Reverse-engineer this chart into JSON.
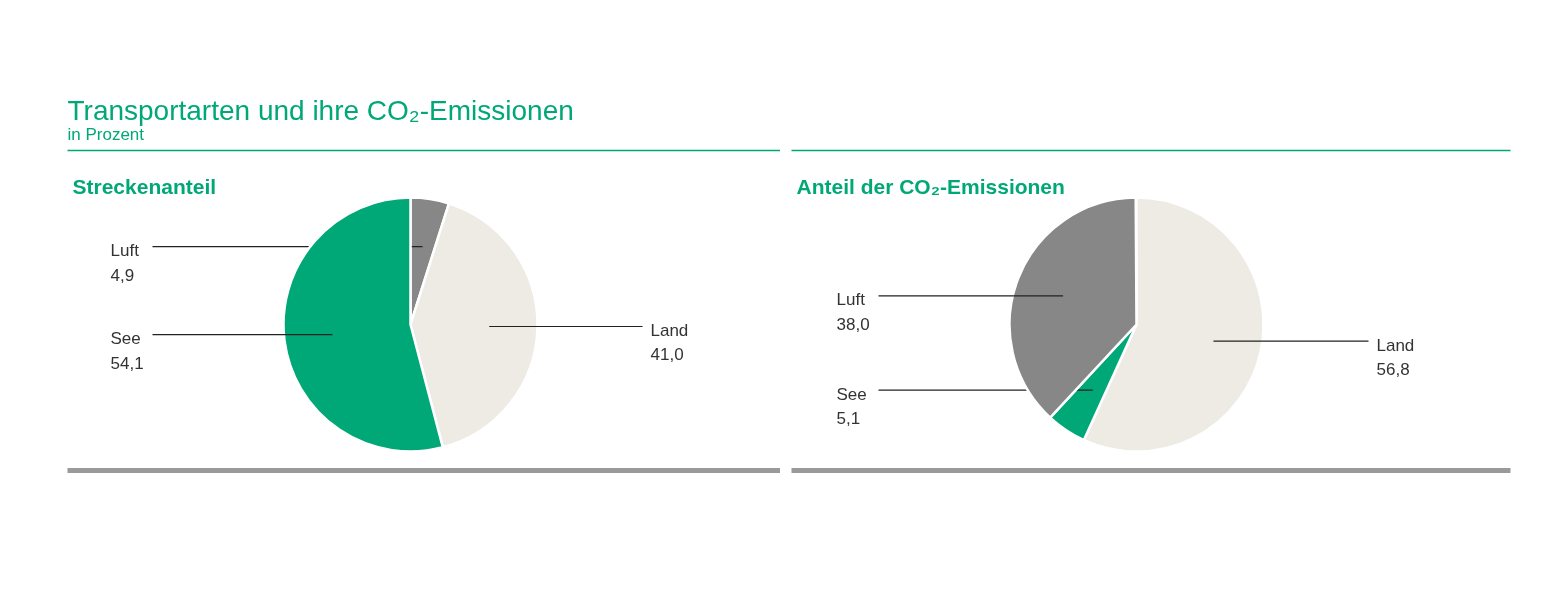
{
  "chart_data": [
    {
      "type": "pie",
      "title": "Transportarten und ihre CO₂-Emissionen",
      "subtitle": "in Prozent",
      "annotations": [
        "Streckenanteil"
      ],
      "categories": [
        "Luft",
        "Land",
        "See"
      ],
      "values": [
        4.9,
        41.0,
        54.1
      ],
      "colors": [
        "#878787",
        "#eeebe5",
        "#00a878"
      ],
      "value_labels": [
        "4,9",
        "41,0",
        "54,1"
      ]
    },
    {
      "type": "pie",
      "title": "Anteil der CO₂-Emissionen",
      "categories": [
        "Land",
        "See",
        "Luft"
      ],
      "values": [
        56.8,
        5.1,
        38.0
      ],
      "colors": [
        "#eeebe5",
        "#00a878",
        "#878787"
      ],
      "value_labels": [
        "56,8",
        "5,1",
        "38,0"
      ]
    }
  ]
}
